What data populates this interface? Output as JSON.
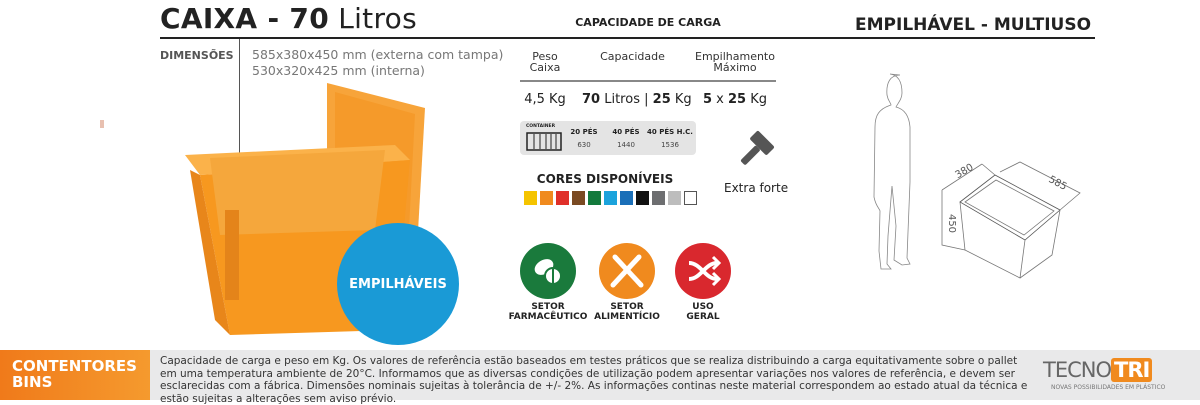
{
  "header": {
    "title_bold": "CAIXA - 70",
    "title_light": "Litros",
    "capacity_title": "CAPACIDADE DE CARGA",
    "tagline": "EMPILHÁVEL - MULTIUSO"
  },
  "dimensions": {
    "label": "DIMENSÕES",
    "external": "585x380x450 mm (externa com tampa)",
    "internal": "530x320x425 mm (interna)"
  },
  "capacity_table": {
    "headers": [
      {
        "line1": "Peso",
        "line2": "Caixa"
      },
      {
        "line1": "",
        "line2": "Capacidade"
      },
      {
        "line1": "Empilhamento",
        "line2": "Máximo"
      }
    ],
    "weight": "4,5 Kg",
    "capacity_liters": "70",
    "capacity_liters_unit": "Litros",
    "separator": "|",
    "capacity_kg": "25",
    "kg_unit": "Kg",
    "stack_count": "5",
    "stack_x": "x",
    "stack_kg": "25"
  },
  "container": {
    "label": "CONTAINER",
    "columns": [
      {
        "name": "20 PÉS",
        "value": "630"
      },
      {
        "name": "40 PÉS",
        "value": "1440"
      },
      {
        "name": "40 PÉS H.C.",
        "value": "1536"
      }
    ]
  },
  "colors": {
    "title": "CORES DISPONÍVEIS",
    "swatches": [
      "#f5c400",
      "#f08a1e",
      "#e0302a",
      "#7a4a22",
      "#137a3c",
      "#1ba3dc",
      "#1a6fb8",
      "#111111",
      "#6d6e70",
      "#bdbdbd",
      "#ffffff"
    ]
  },
  "strength": {
    "icon": "hammer-icon",
    "label": "Extra forte"
  },
  "sectors": [
    {
      "icon": "pills-icon",
      "color": "#1a7a3c",
      "line1": "SETOR",
      "line2": "FARMACÊUTICO"
    },
    {
      "icon": "knife-fork-icon",
      "color": "#f08a1e",
      "line1": "SETOR",
      "line2": "ALIMENTÍCIO"
    },
    {
      "icon": "shuffle-icon",
      "color": "#d9282e",
      "line1": "USO",
      "line2": "GERAL"
    }
  ],
  "badge": "EMPILHÁVEIS",
  "drawing": {
    "width": "380",
    "length": "585",
    "height": "450"
  },
  "footer": {
    "category_line1": "CONTENTORES",
    "category_line2": "BINS",
    "note": "Capacidade de carga e peso em Kg. Os valores de referência estão baseados em testes práticos que se realiza distribuindo a carga equitativamente sobre o pallet em uma temperatura ambiente de 20°C. Informamos que as diversas condições de utilização podem apresentar variações nos valores de referência, e devem ser esclarecidas com a fábrica. Dimensões nominais sujeitas à tolerância de +/- 2%. As informações continas neste material correspondem ao estado atual da técnica e estão sujeitas a alterações sem aviso prévio.",
    "logo_text": "TECNOTRI",
    "logo_tagline": "NOVAS POSSIBILIDADES EM PLÁSTICO"
  },
  "accent": "#f08a1e"
}
